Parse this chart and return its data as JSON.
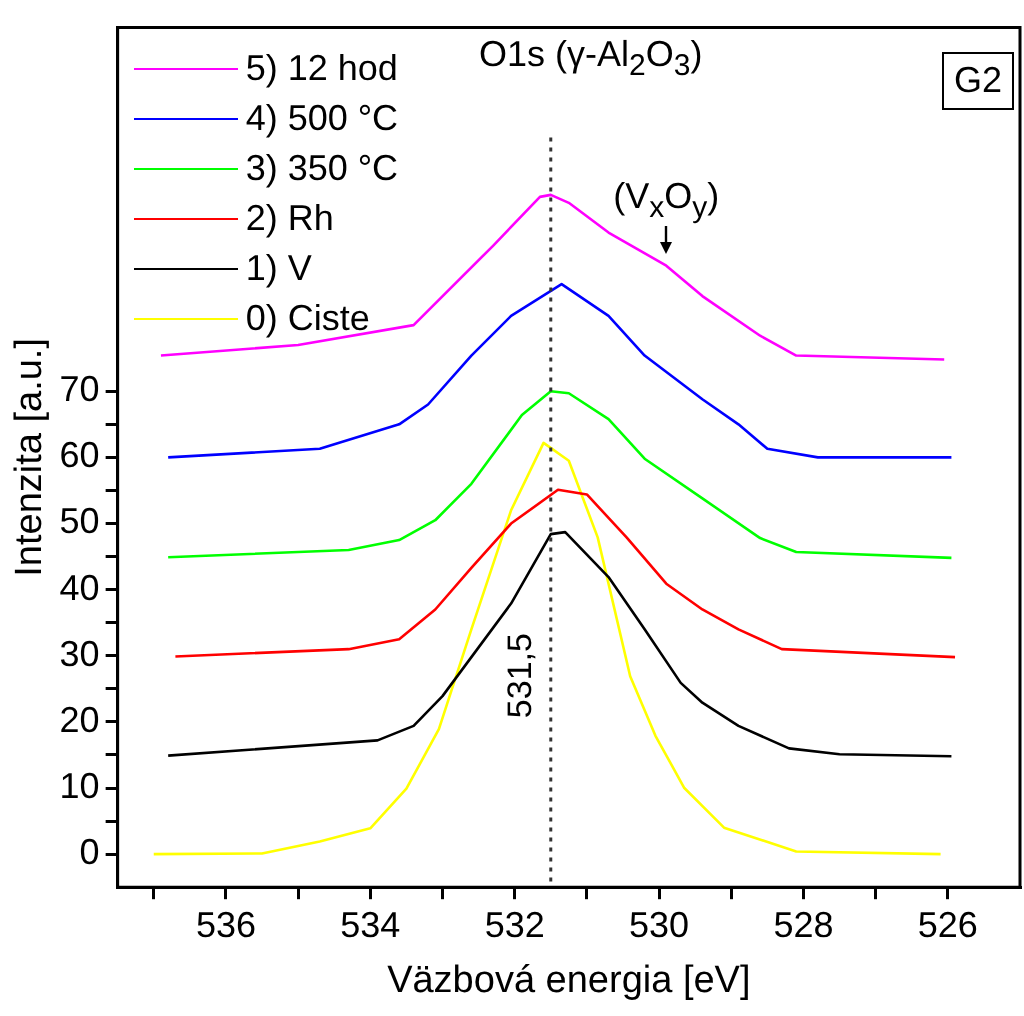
{
  "chart_data": {
    "type": "line",
    "title": "O1s (γ-Al$_{2}$O$_{3}$)",
    "xlabel": "Väzbová energia [eV]",
    "ylabel": "Intenzita [a.u.]",
    "annotations": [
      "G2",
      {
        "text": "(V$_{x}$O$_{y}$)",
        "x": 529.9,
        "y": 90
      }
    ],
    "xlim": [
      537.5,
      525
    ],
    "xticks": [
      {
        "value": 537,
        "label": null
      },
      536,
      {
        "value": 535,
        "label": null
      },
      534,
      {
        "value": 533,
        "label": null
      },
      532,
      {
        "value": 531,
        "label": null
      },
      530,
      {
        "value": 529,
        "label": null
      },
      528,
      {
        "value": 527,
        "label": null
      },
      526
    ],
    "ylim": [
      -5,
      125
    ],
    "yticks": [
      0,
      {
        "value": 5,
        "label": null
      },
      10,
      {
        "value": 15,
        "label": null
      },
      20,
      {
        "value": 25,
        "label": null
      },
      30,
      {
        "value": 35,
        "label": null
      },
      40,
      {
        "value": 45,
        "label": null
      },
      50,
      {
        "value": 55,
        "label": null
      },
      60,
      {
        "value": 65,
        "label": null
      },
      70
    ],
    "grid": false,
    "legend": "top left",
    "marker": "none",
    "line_style": "solid",
    "ref_lines": [
      {
        "axis": "x",
        "value": 531.5,
        "label": "531,5",
        "line_style": "dotted",
        "color": "#333333"
      }
    ],
    "series": [
      {
        "name": "5) 12 hod",
        "color": "#ff00ff",
        "x": [
          536.9,
          535,
          533.4,
          532.3,
          531.65,
          531.5,
          531.25,
          530.7,
          529.9,
          529.4,
          528.6,
          528.1,
          526.05
        ],
        "values": [
          75.4,
          77,
          80,
          92,
          99.4,
          99.7,
          98.5,
          94,
          89,
          84.4,
          78.4,
          75.4,
          74.8
        ]
      },
      {
        "name": "4) 500 °C",
        "color": "#0000ff",
        "x": [
          536.8,
          534.7,
          533.6,
          533.2,
          532.6,
          532.05,
          531.35,
          530.7,
          530.2,
          529.4,
          528.9,
          528.5,
          527.8,
          525.95
        ],
        "values": [
          60,
          61.3,
          65,
          68,
          75.4,
          81.4,
          86.2,
          81.4,
          75.4,
          68.8,
          65,
          61.3,
          60,
          60
        ]
      },
      {
        "name": "3) 350 °C",
        "color": "#00ff00",
        "x": [
          536.8,
          534.3,
          533.6,
          533.1,
          532.6,
          531.9,
          531.5,
          531.25,
          530.7,
          530.2,
          529.4,
          528.6,
          528.1,
          525.95
        ],
        "values": [
          44.9,
          46,
          47.5,
          50.5,
          56,
          66.4,
          70,
          69.7,
          65.8,
          59.8,
          53.8,
          47.8,
          45.7,
          44.8
        ]
      },
      {
        "name": "2) Rh",
        "color": "#ff0000",
        "x": [
          536.7,
          534.3,
          533.6,
          533.1,
          532.6,
          532.05,
          531.4,
          531,
          530.45,
          529.9,
          529.4,
          528.9,
          528.3,
          525.9
        ],
        "values": [
          29.9,
          31,
          32.5,
          37,
          43.3,
          50,
          55.1,
          54.4,
          47.9,
          40.9,
          37,
          34,
          31,
          29.8
        ]
      },
      {
        "name": "1) V",
        "color": "#000000",
        "x": [
          536.8,
          533.9,
          533.4,
          533,
          532.05,
          531.5,
          531.3,
          530.7,
          530.2,
          529.7,
          529.4,
          528.9,
          528.2,
          527.5,
          525.95
        ],
        "values": [
          14.9,
          17.2,
          19.4,
          23.9,
          37.9,
          48.4,
          48.7,
          41.9,
          34,
          25.9,
          22.9,
          19.4,
          16,
          15.1,
          14.8
        ]
      },
      {
        "name": "0) Ciste",
        "color": "#ffff00",
        "x": [
          537,
          535.5,
          534.7,
          534,
          533.5,
          533.05,
          532.6,
          532.05,
          531.6,
          531.25,
          530.85,
          530.4,
          530.05,
          529.65,
          529.1,
          528.1,
          526.1
        ],
        "values": [
          0,
          0.1,
          1.9,
          3.9,
          9.9,
          18.9,
          34,
          52,
          62.2,
          59.5,
          47.9,
          26.9,
          17.9,
          10,
          4,
          0.4,
          0
        ]
      }
    ]
  }
}
